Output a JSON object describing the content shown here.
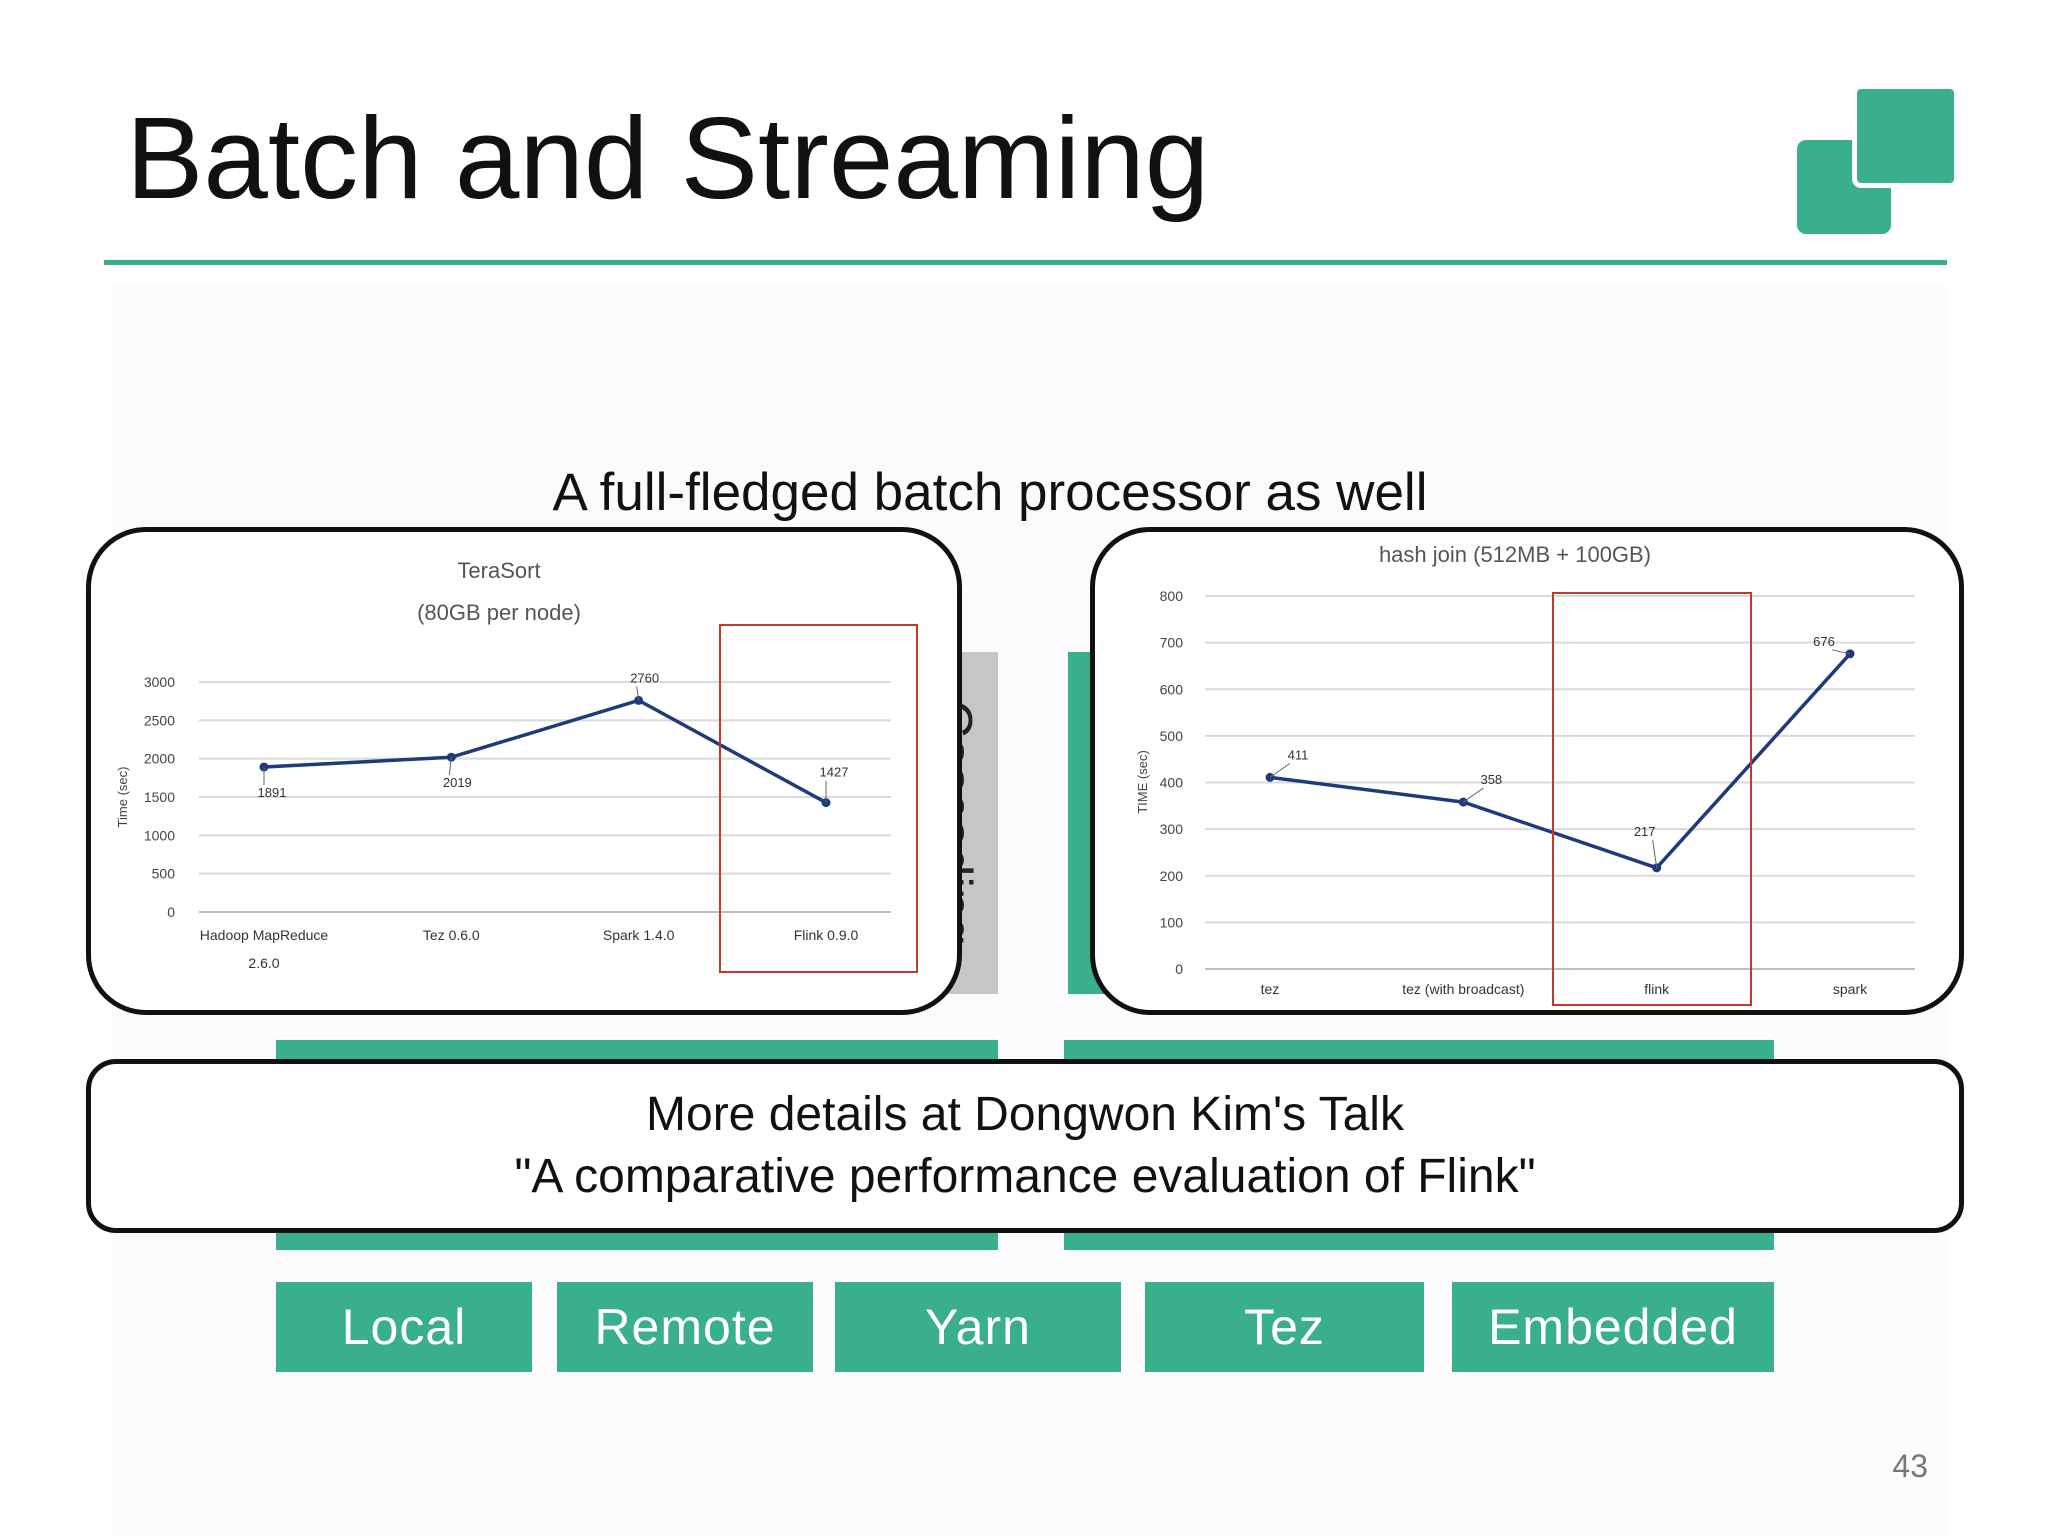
{
  "slide": {
    "title": "Batch and Streaming",
    "subtitle": "A full-fledged batch processor as well",
    "background_block_label": "Cascading",
    "callout_line1": "More details at Dongwon Kim's Talk",
    "callout_line2": "\"A comparative performance evaluation of Flink\"",
    "modes": [
      "Local",
      "Remote",
      "Yarn",
      "Tez",
      "Embedded"
    ],
    "page_number": "43",
    "colors": {
      "accent": "#3aaf8e",
      "line": "#1f3a7a",
      "highlight": "#c0392b",
      "grid": "#d9d9d9"
    }
  },
  "chart_data": [
    {
      "type": "line",
      "title": "TeraSort",
      "subtitle": "(80GB per node)",
      "ylabel": "Time (sec)",
      "categories": [
        "Hadoop MapReduce 2.6.0",
        "Tez 0.6.0",
        "Spark 1.4.0",
        "Flink 0.9.0"
      ],
      "values": [
        1891,
        2019,
        2760,
        1427
      ],
      "data_labels": [
        "1891",
        "2019",
        "2760",
        "1427"
      ],
      "yticks": [
        0,
        500,
        1000,
        1500,
        2000,
        2500,
        3000
      ],
      "ylim": [
        0,
        3000
      ],
      "grid": true,
      "highlighted_category": "Flink 0.9.0"
    },
    {
      "type": "line",
      "title": "hash join (512MB + 100GB)",
      "ylabel": "TIME (sec)",
      "categories": [
        "tez",
        "tez (with broadcast)",
        "flink",
        "spark"
      ],
      "values": [
        411,
        358,
        217,
        676
      ],
      "data_labels": [
        "411",
        "358",
        "217",
        "676"
      ],
      "yticks": [
        0,
        100,
        200,
        300,
        400,
        500,
        600,
        700,
        800
      ],
      "ylim": [
        0,
        800
      ],
      "grid": true,
      "highlighted_category": "flink"
    }
  ]
}
